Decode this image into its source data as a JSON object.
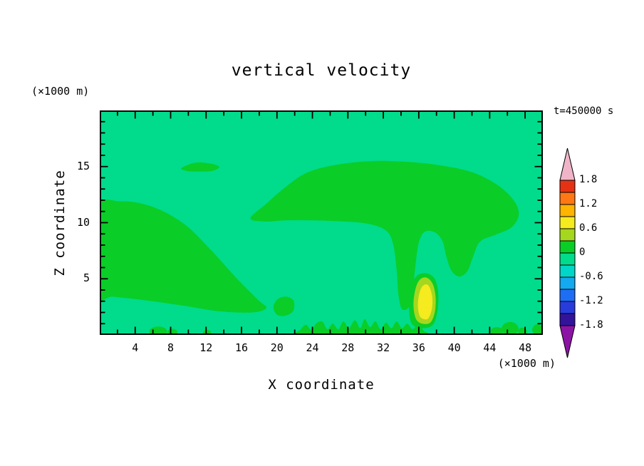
{
  "title": "vertical velocity",
  "annotations": {
    "time_label": "t=450000 s",
    "y_unit_label": "(×1000 m)",
    "x_unit_label": "(×1000 m)"
  },
  "axes": {
    "x": {
      "label": "X coordinate",
      "range": [
        0,
        50
      ],
      "major_ticks": [
        4,
        8,
        12,
        16,
        20,
        24,
        28,
        32,
        36,
        40,
        44,
        48
      ],
      "minor_tick_step": 2
    },
    "y": {
      "label": "Z coordinate",
      "range": [
        0,
        20
      ],
      "major_ticks": [
        5,
        10,
        15
      ],
      "minor_tick_step": 1
    }
  },
  "colorbar": {
    "boundary_labels": [
      "1.8",
      "1.2",
      "0.6",
      "0",
      "-0.6",
      "-1.2",
      "-1.8"
    ],
    "boundaries_top_to_bottom": [
      1.8,
      1.5,
      1.2,
      0.9,
      0.6,
      0.3,
      0,
      -0.3,
      -0.6,
      -0.9,
      -1.2,
      -1.5,
      -1.8
    ],
    "segment_colors_top_to_bottom": [
      "#E63214",
      "#FF7814",
      "#FFB400",
      "#F5EB1E",
      "#A5D71E",
      "#0ACD28",
      "#00DC8C",
      "#00D7C8",
      "#14AAF0",
      "#1E6EF5",
      "#283CDC",
      "#32149B"
    ],
    "over_arrow_color": "#F0B4C8",
    "under_arrow_color": "#8C14A5"
  },
  "chart_data": {
    "type": "heatmap",
    "subtype": "filled_contour",
    "title": "vertical velocity",
    "xlabel": "X coordinate",
    "ylabel": "Z coordinate",
    "x_range": [
      0,
      50
    ],
    "z_range": [
      0,
      20
    ],
    "contour_interval": 0.3,
    "background_band": "-0.3 to 0",
    "field_colors": {
      "background": "#00DC8C",
      "green": "#0ACD28",
      "chartreuse": "#A5D71E",
      "yellow": "#F5EB1E"
    },
    "regions": [
      {
        "name": "left-ascent-band",
        "band": "0 to 0.3",
        "color_key": "green",
        "shape": "poly",
        "points": [
          [
            -0.6,
            3.6
          ],
          [
            -0.6,
            11.2
          ],
          [
            2.5,
            11.9
          ],
          [
            6,
            11.4
          ],
          [
            9.5,
            9.9
          ],
          [
            12.5,
            7.6
          ],
          [
            15.5,
            5.0
          ],
          [
            17.9,
            3.1
          ],
          [
            18.8,
            2.4
          ],
          [
            17.2,
            2.0
          ],
          [
            13.5,
            2.1
          ],
          [
            9.5,
            2.6
          ],
          [
            5,
            3.1
          ],
          [
            1.5,
            3.4
          ]
        ]
      },
      {
        "name": "upper-ascent-band",
        "band": "0 to 0.3",
        "color_key": "green",
        "shape": "poly",
        "points": [
          [
            17,
            10.4
          ],
          [
            18.8,
            11.7
          ],
          [
            21,
            13.2
          ],
          [
            23.5,
            14.5
          ],
          [
            27,
            15.2
          ],
          [
            31,
            15.5
          ],
          [
            35,
            15.4
          ],
          [
            38.5,
            15.1
          ],
          [
            42,
            14.5
          ],
          [
            44.8,
            13.4
          ],
          [
            46.6,
            12.1
          ],
          [
            47.3,
            10.8
          ],
          [
            46.5,
            9.6
          ],
          [
            44.6,
            8.9
          ],
          [
            42.9,
            8.3
          ],
          [
            42.1,
            6.9
          ],
          [
            41.5,
            5.7
          ],
          [
            40.6,
            5.2
          ],
          [
            39.7,
            5.7
          ],
          [
            39.1,
            7.0
          ],
          [
            38.7,
            8.3
          ],
          [
            37.9,
            9.1
          ],
          [
            36.7,
            9.2
          ],
          [
            36.0,
            8.2
          ],
          [
            35.6,
            6.0
          ],
          [
            35.3,
            3.8
          ],
          [
            34.9,
            2.5
          ],
          [
            34.1,
            2.3
          ],
          [
            33.7,
            3.6
          ],
          [
            33.5,
            5.8
          ],
          [
            33.1,
            8.1
          ],
          [
            32.3,
            9.3
          ],
          [
            30.3,
            9.9
          ],
          [
            27.5,
            10.1
          ],
          [
            24,
            10.2
          ],
          [
            21,
            10.2
          ],
          [
            18.6,
            10.1
          ]
        ]
      },
      {
        "name": "upper-left-sliver",
        "band": "0 to 0.3",
        "color_key": "green",
        "shape": "poly",
        "points": [
          [
            9.2,
            14.85
          ],
          [
            10.8,
            15.35
          ],
          [
            12.6,
            15.25
          ],
          [
            13.5,
            14.95
          ],
          [
            12.6,
            14.6
          ],
          [
            10.8,
            14.55
          ],
          [
            9.9,
            14.6
          ]
        ]
      },
      {
        "name": "small-cell",
        "band": "0 to 0.3",
        "color_key": "green",
        "shape": "poly",
        "points": [
          [
            19.6,
            2.5
          ],
          [
            20.1,
            3.2
          ],
          [
            21.1,
            3.4
          ],
          [
            21.9,
            3.0
          ],
          [
            21.8,
            2.1
          ],
          [
            20.9,
            1.7
          ],
          [
            20.0,
            1.8
          ]
        ]
      },
      {
        "name": "updraft-outer",
        "band": "0 to 0.3",
        "color_key": "green",
        "shape": "poly",
        "points": [
          [
            35.2,
            1.0
          ],
          [
            34.9,
            2.5
          ],
          [
            35.1,
            4.1
          ],
          [
            35.7,
            5.2
          ],
          [
            36.8,
            5.5
          ],
          [
            37.8,
            5.0
          ],
          [
            38.2,
            3.7
          ],
          [
            38.1,
            2.1
          ],
          [
            37.6,
            0.9
          ],
          [
            36.4,
            0.6
          ]
        ]
      },
      {
        "name": "updraft-mid",
        "band": "0.3 to 0.6",
        "color_key": "chartreuse",
        "shape": "poly",
        "points": [
          [
            35.7,
            1.4
          ],
          [
            35.4,
            2.6
          ],
          [
            35.6,
            4.0
          ],
          [
            36.1,
            4.9
          ],
          [
            36.9,
            5.1
          ],
          [
            37.6,
            4.5
          ],
          [
            37.9,
            3.3
          ],
          [
            37.8,
            2.0
          ],
          [
            37.3,
            1.1
          ],
          [
            36.4,
            1.0
          ]
        ]
      },
      {
        "name": "updraft-core",
        "band": "0.6 to 0.9",
        "color_key": "yellow",
        "shape": "poly",
        "points": [
          [
            36.1,
            1.7
          ],
          [
            35.9,
            2.7
          ],
          [
            36.1,
            3.8
          ],
          [
            36.5,
            4.4
          ],
          [
            37.1,
            4.4
          ],
          [
            37.5,
            3.5
          ],
          [
            37.5,
            2.4
          ],
          [
            37.1,
            1.5
          ],
          [
            36.6,
            1.4
          ]
        ]
      },
      {
        "name": "surface-cells",
        "band": "0 to 0.3",
        "color_key": "green",
        "shape": "poly",
        "points": [
          [
            22.4,
            -0.4
          ],
          [
            22.7,
            0.5
          ],
          [
            23.3,
            0.9
          ],
          [
            23.9,
            0.4
          ],
          [
            24.4,
            1.0
          ],
          [
            25.1,
            1.2
          ],
          [
            25.7,
            0.5
          ],
          [
            26.3,
            1.0
          ],
          [
            26.9,
            0.5
          ],
          [
            27.5,
            1.2
          ],
          [
            28.1,
            0.6
          ],
          [
            28.8,
            1.3
          ],
          [
            29.4,
            0.6
          ],
          [
            29.9,
            1.4
          ],
          [
            30.5,
            0.7
          ],
          [
            31.1,
            1.2
          ],
          [
            31.7,
            0.5
          ],
          [
            32.3,
            1.1
          ],
          [
            32.9,
            0.6
          ],
          [
            33.5,
            1.2
          ],
          [
            34.1,
            0.6
          ],
          [
            34.7,
            1.0
          ],
          [
            35.3,
            0.5
          ],
          [
            35.9,
            0.9
          ],
          [
            36.5,
            0.4
          ],
          [
            36.9,
            -0.4
          ]
        ]
      },
      {
        "name": "surface-speck",
        "band": "0 to 0.3",
        "color_key": "green",
        "shape": "ellipse",
        "cx": 6.6,
        "cy": 0.3,
        "rx": 1.0,
        "ry": 0.45
      },
      {
        "name": "surface-speck",
        "band": "0 to 0.3",
        "color_key": "green",
        "shape": "ellipse",
        "cx": 8.2,
        "cy": 0.25,
        "rx": 0.55,
        "ry": 0.3
      },
      {
        "name": "surface-speck",
        "band": "0 to 0.3",
        "color_key": "green",
        "shape": "ellipse",
        "cx": 12.1,
        "cy": 0.2,
        "rx": 0.45,
        "ry": 0.25
      },
      {
        "name": "surface-speck",
        "band": "0 to 0.3",
        "color_key": "green",
        "shape": "ellipse",
        "cx": 44.8,
        "cy": 0.3,
        "rx": 0.7,
        "ry": 0.4
      },
      {
        "name": "surface-speck",
        "band": "0 to 0.3",
        "color_key": "green",
        "shape": "ellipse",
        "cx": 46.3,
        "cy": 0.55,
        "rx": 0.95,
        "ry": 0.6
      },
      {
        "name": "surface-speck",
        "band": "0 to 0.3",
        "color_key": "green",
        "shape": "ellipse",
        "cx": 47.7,
        "cy": 0.3,
        "rx": 0.5,
        "ry": 0.35
      },
      {
        "name": "surface-speck",
        "band": "0 to 0.3",
        "color_key": "green",
        "shape": "ellipse",
        "cx": 49.4,
        "cy": 0.45,
        "rx": 0.6,
        "ry": 0.5
      }
    ]
  }
}
